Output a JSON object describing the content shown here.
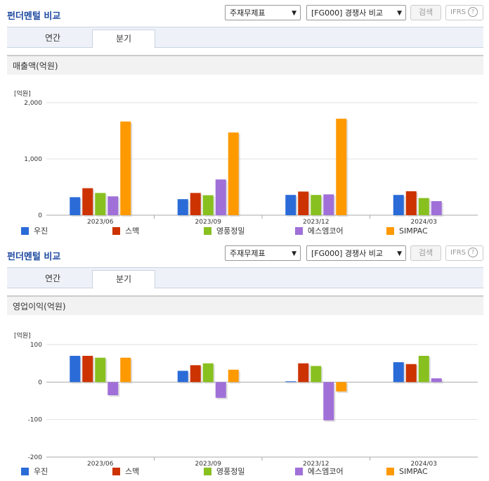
{
  "panels": [
    {
      "title": "펀더멘털 비교",
      "select1": "주재무제표",
      "select2": "[FG000] 경쟁사 비교",
      "search": "검색",
      "ifrs": "IFRS",
      "tab_annual": "연간",
      "tab_quarter": "분기",
      "chart_title": "매출액(억원)"
    },
    {
      "title": "펀더멘털 비교",
      "select1": "주재무제표",
      "select2": "[FG000] 경쟁사 비교",
      "search": "검색",
      "ifrs": "IFRS",
      "tab_annual": "연간",
      "tab_quarter": "분기",
      "chart_title": "영업이익(억원)"
    }
  ],
  "chart_data": [
    {
      "type": "bar",
      "title": "매출액(억원)",
      "unit": "[억원]",
      "categories": [
        "2023/06",
        "2023/09",
        "2023/12",
        "2024/03"
      ],
      "ylim": [
        0,
        2000
      ],
      "yticks": [
        0,
        1000,
        2000
      ],
      "ytick_labels": [
        "0",
        "1,000",
        "2,000"
      ],
      "series": [
        {
          "name": "우진",
          "color": "#2a6bd8",
          "values": [
            320,
            285,
            360,
            360
          ]
        },
        {
          "name": "스맥",
          "color": "#cc3300",
          "values": [
            480,
            395,
            420,
            425
          ]
        },
        {
          "name": "영풍정밀",
          "color": "#88c020",
          "values": [
            395,
            355,
            360,
            305
          ]
        },
        {
          "name": "에스엠코어",
          "color": "#a070d8",
          "values": [
            335,
            635,
            370,
            250
          ]
        },
        {
          "name": "SIMPAC",
          "color": "#ff9900",
          "values": [
            1665,
            1470,
            1715,
            null
          ]
        }
      ]
    },
    {
      "type": "bar",
      "title": "영업이익(억원)",
      "unit": "[억원]",
      "categories": [
        "2023/06",
        "2023/09",
        "2023/12",
        "2024/03"
      ],
      "ylim": [
        -200,
        100
      ],
      "yticks": [
        -200,
        -100,
        0,
        100
      ],
      "ytick_labels": [
        "-200",
        "-100",
        "0",
        "100"
      ],
      "series": [
        {
          "name": "우진",
          "color": "#2a6bd8",
          "values": [
            70,
            30,
            2,
            53
          ]
        },
        {
          "name": "스맥",
          "color": "#cc3300",
          "values": [
            70,
            45,
            50,
            48
          ]
        },
        {
          "name": "영풍정밀",
          "color": "#88c020",
          "values": [
            65,
            50,
            43,
            70
          ]
        },
        {
          "name": "에스엠코어",
          "color": "#a070d8",
          "values": [
            -35,
            -42,
            -102,
            10
          ]
        },
        {
          "name": "SIMPAC",
          "color": "#ff9900",
          "values": [
            65,
            33,
            -25,
            null
          ]
        }
      ]
    }
  ]
}
